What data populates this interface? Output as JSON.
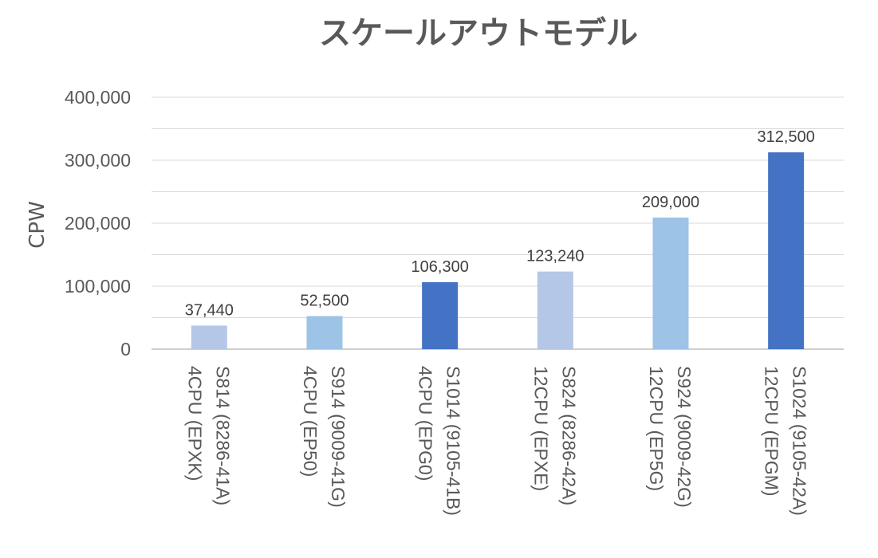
{
  "chart_data": {
    "type": "bar",
    "title": "スケールアウトモデル",
    "ylabel": "CPW",
    "xlabel": "",
    "ylim": [
      0,
      400000
    ],
    "yticks": [
      0,
      100000,
      200000,
      300000,
      400000
    ],
    "ytick_labels": [
      "0",
      "100,000",
      "200,000",
      "300,000",
      "400,000"
    ],
    "grid": true,
    "categories": [
      [
        "S814 (8286-41A)",
        "4CPU (EPXK)"
      ],
      [
        "S914 (9009-41G)",
        "4CPU (EP50)"
      ],
      [
        "S1014 (9105-41B)",
        "4CPU (EPG0)"
      ],
      [
        "S824 (8286-42A)",
        "12CPU (EPXE)"
      ],
      [
        "S924 (9009-42G)",
        "12CPU (EP5G)"
      ],
      [
        "S1024 (9105-42A)",
        "12CPU (EPGM)"
      ]
    ],
    "values": [
      37440,
      52500,
      106300,
      123240,
      209000,
      312500
    ],
    "value_labels": [
      "37,440",
      "52,500",
      "106,300",
      "123,240",
      "209,000",
      "312,500"
    ],
    "colors": [
      "#b4c7e7",
      "#9dc3e6",
      "#4472c4",
      "#b4c7e7",
      "#9dc3e6",
      "#4472c4"
    ],
    "gridline_color": "#d9d9d9"
  }
}
